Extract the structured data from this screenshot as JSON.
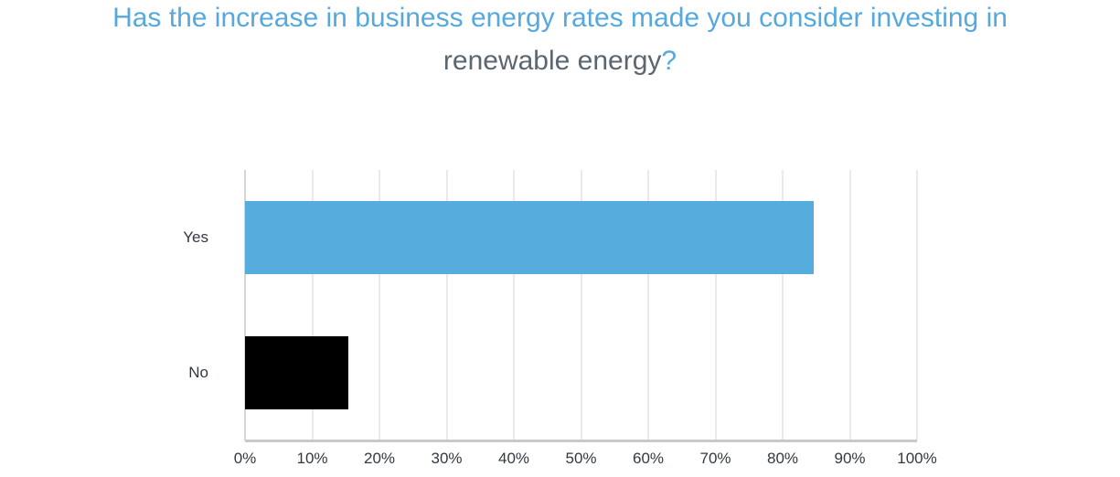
{
  "title": {
    "line1": "Has the increase in business energy rates made you consider investing in",
    "line2": "renewable energy",
    "question_mark": "?"
  },
  "colors": {
    "title_blue": "#55a9dc",
    "title_gray": "#5b6670",
    "axis_line": "#c9c9c9",
    "gridline": "#e9e9e9",
    "zero_gridline": "#d5d5d5",
    "label_text": "#33393f"
  },
  "chart_data": {
    "type": "bar",
    "orientation": "horizontal",
    "title": "Has the increase in business energy rates made you consider investing in renewable energy?",
    "categories": [
      "Yes",
      "No"
    ],
    "values": [
      84.6,
      15.4
    ],
    "bar_colors": [
      "#55acdd",
      "#000000"
    ],
    "xlabel": "",
    "ylabel": "",
    "xlim": [
      0,
      100
    ],
    "x_tick_labels": [
      "0%",
      "10%",
      "20%",
      "30%",
      "40%",
      "50%",
      "60%",
      "70%",
      "80%",
      "90%",
      "100%"
    ],
    "grid": true,
    "legend": false
  }
}
